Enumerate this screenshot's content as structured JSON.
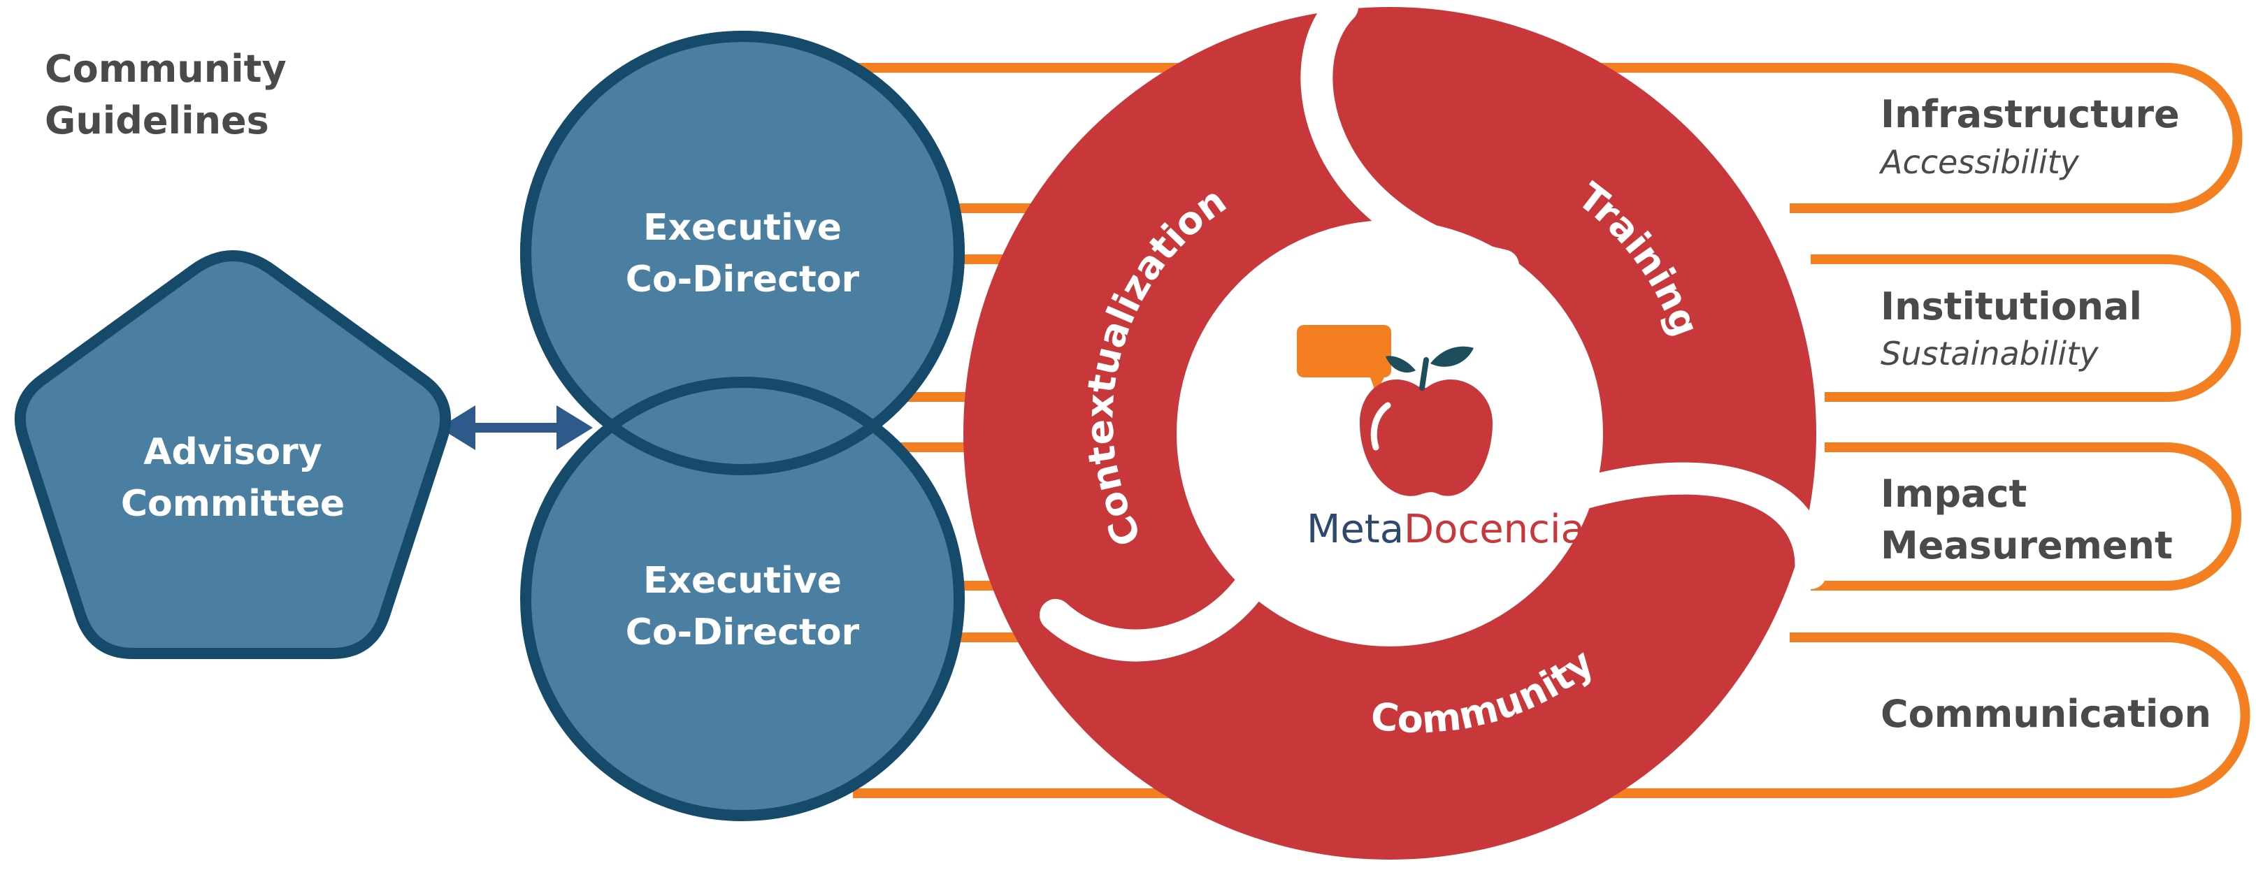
{
  "guidelines": {
    "line1": "Community",
    "line2": "Guidelines"
  },
  "advisory": {
    "line1": "Advisory",
    "line2": "Committee"
  },
  "co_directors": [
    {
      "line1": "Executive",
      "line2": "Co-Director"
    },
    {
      "line1": "Executive",
      "line2": "Co-Director"
    }
  ],
  "pillars": {
    "contextualization": "Contextualization",
    "training": "Training",
    "community": "Community"
  },
  "brand": {
    "part1": "Meta",
    "part2": "Docencia"
  },
  "areas": [
    {
      "title": "Infrastructure",
      "subtitle": "Accessibility"
    },
    {
      "title": "Institutional",
      "subtitle": "Sustainability"
    },
    {
      "title": "Impact",
      "subtitle": "Measurement"
    },
    {
      "title": "Communication",
      "subtitle": ""
    }
  ],
  "colors": {
    "orange": "#f47f20",
    "blue_fill": "#4a7fa1",
    "blue_stroke": "#154a6a",
    "red": "#c8373a",
    "text_dark": "#4a4a4a",
    "brand_navy": "#2d4a6e"
  }
}
